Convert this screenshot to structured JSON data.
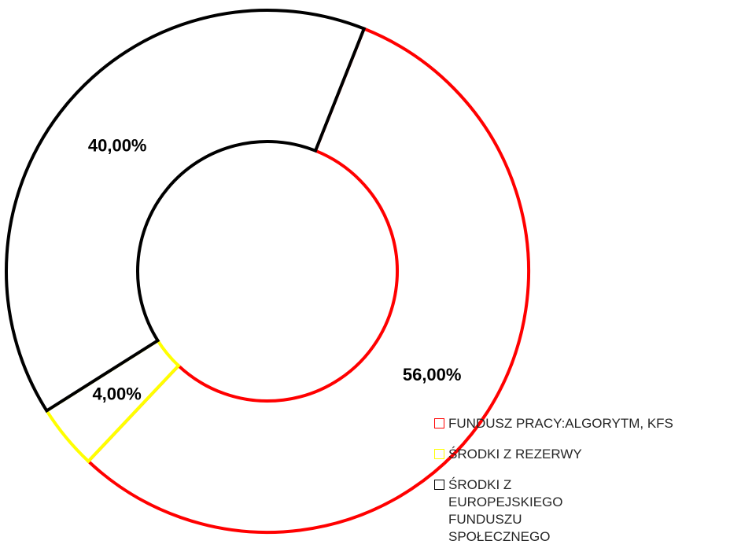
{
  "chart_data": {
    "type": "donut",
    "categories": [
      "FUNDUSZ PRACY:ALGORYTM, KFS",
      "ŚRODKI Z REZERWY",
      "ŚRODKI Z EUROPEJSKIEGO FUNDUSZU SPOŁECZNEGO"
    ],
    "values": [
      56,
      4,
      40
    ],
    "value_labels": [
      "56,00%",
      "4,00%",
      "40,00%"
    ],
    "colors": [
      "#ff0000",
      "#ffff00",
      "#000000"
    ],
    "legend": "bottom-right"
  }
}
